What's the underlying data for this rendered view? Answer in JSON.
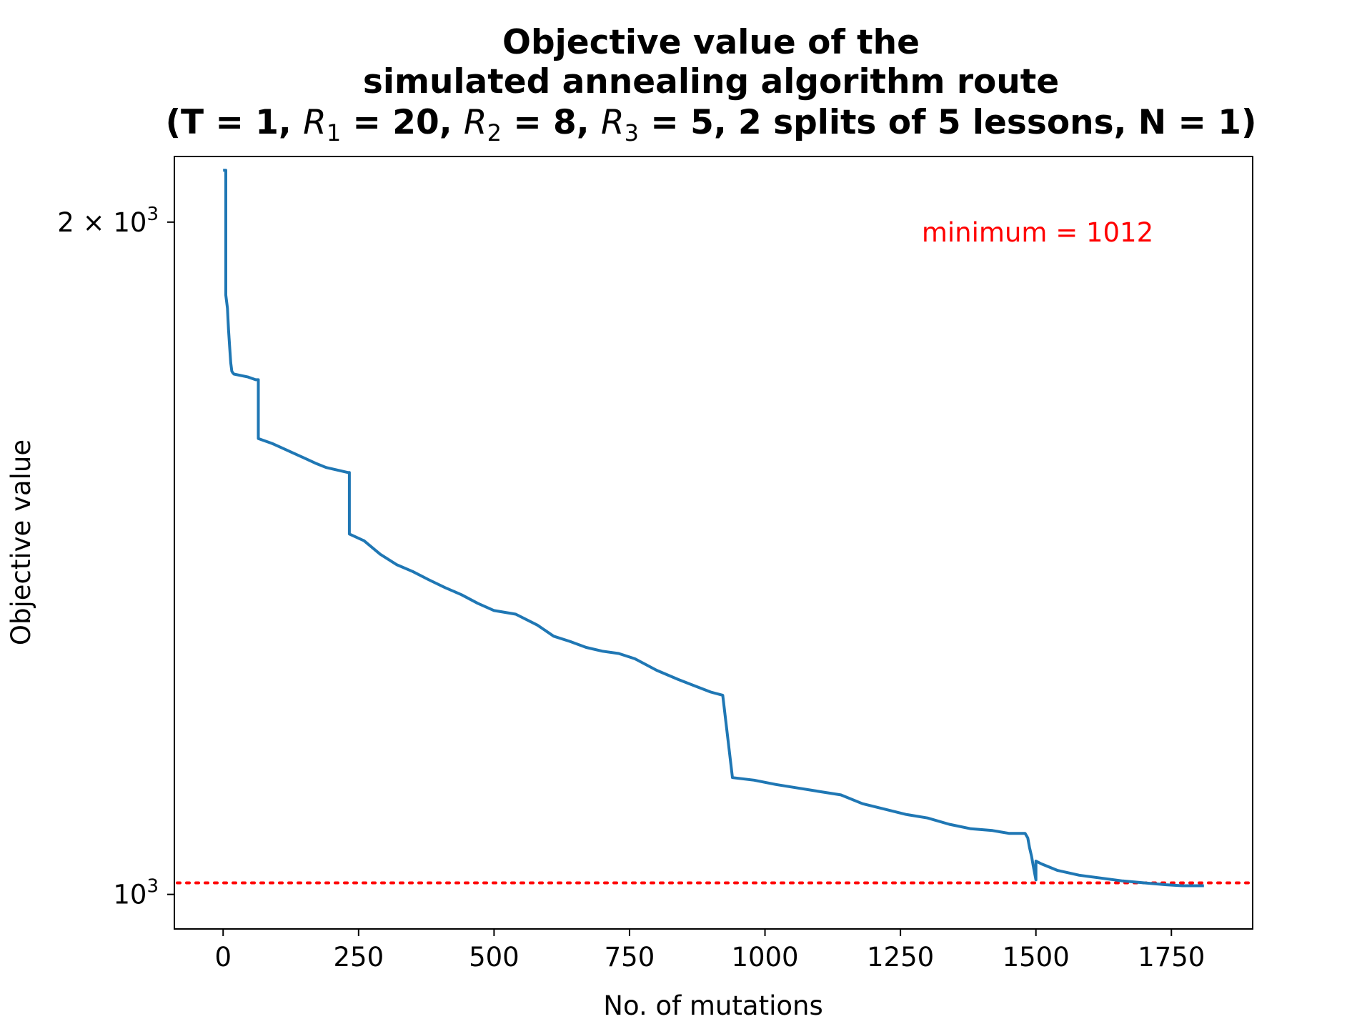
{
  "chart_data": {
    "type": "line",
    "title": "Objective value of the\nsimulated annealing algorithm route\n(T = 1, R1 = 20, R2 = 8, R3 = 5, 2 splits of 5 lessons, N = 1)",
    "title_lines": {
      "line1": "Objective value of the",
      "line2": "simulated annealing algorithm route",
      "line3": {
        "part_a": "(T = 1, ",
        "r1": "R",
        "r1_sub": "1",
        "part_b": " = 20, ",
        "r2": "R",
        "r2_sub": "2",
        "part_c": " = 8, ",
        "r3": "R",
        "r3_sub": "3",
        "part_d": " = 5, 2 splits of 5 lessons, N = 1)"
      }
    },
    "xlabel": "No. of mutations",
    "ylabel": "Objective value",
    "yscale": "log",
    "xlim": [
      -90,
      1900
    ],
    "ylim": [
      965,
      2140
    ],
    "xticks": [
      {
        "value": 0,
        "label": "0"
      },
      {
        "value": 250,
        "label": "250"
      },
      {
        "value": 500,
        "label": "500"
      },
      {
        "value": 750,
        "label": "750"
      },
      {
        "value": 1000,
        "label": "1000"
      },
      {
        "value": 1250,
        "label": "1250"
      },
      {
        "value": 1500,
        "label": "1500"
      },
      {
        "value": 1750,
        "label": "1750"
      }
    ],
    "yticks": [
      {
        "value": 2000,
        "base": "2 × 10",
        "exp": "3"
      },
      {
        "value": 1000,
        "base": "10",
        "exp": "3"
      }
    ],
    "series": [
      {
        "name": "objective",
        "color": "#1f77b4",
        "x": [
          0,
          5,
          5,
          8,
          10,
          12,
          14,
          16,
          18,
          20,
          45,
          60,
          65,
          65,
          90,
          110,
          130,
          150,
          170,
          190,
          210,
          230,
          233,
          233,
          260,
          290,
          320,
          350,
          380,
          410,
          440,
          470,
          500,
          540,
          580,
          610,
          640,
          670,
          700,
          730,
          760,
          800,
          840,
          870,
          900,
          922,
          922,
          940,
          980,
          1020,
          1060,
          1100,
          1140,
          1180,
          1220,
          1260,
          1300,
          1340,
          1380,
          1420,
          1450,
          1480,
          1485,
          1488,
          1492,
          1495,
          1500,
          1500,
          1510,
          1540,
          1580,
          1620,
          1660,
          1700,
          1740,
          1770,
          1790,
          1810
        ],
        "values": [
          2110,
          2110,
          1855,
          1830,
          1790,
          1760,
          1730,
          1715,
          1712,
          1710,
          1705,
          1700,
          1700,
          1600,
          1592,
          1584,
          1576,
          1568,
          1560,
          1553,
          1549,
          1545,
          1545,
          1450,
          1440,
          1420,
          1405,
          1395,
          1383,
          1372,
          1362,
          1350,
          1340,
          1335,
          1320,
          1305,
          1298,
          1290,
          1285,
          1282,
          1275,
          1260,
          1248,
          1240,
          1232,
          1228,
          1228,
          1128,
          1125,
          1120,
          1116,
          1112,
          1108,
          1098,
          1092,
          1086,
          1082,
          1075,
          1070,
          1068,
          1065,
          1065,
          1060,
          1050,
          1040,
          1030,
          1015,
          1035,
          1032,
          1025,
          1020,
          1017,
          1014,
          1012,
          1010,
          1009,
          1009,
          1009
        ]
      }
    ],
    "reference_line": {
      "value": 1012,
      "color": "#ff0000",
      "style": "dotted"
    },
    "annotation": {
      "text": "minimum = 1012",
      "color": "#ff0000"
    },
    "grid": false,
    "legend": "none"
  }
}
